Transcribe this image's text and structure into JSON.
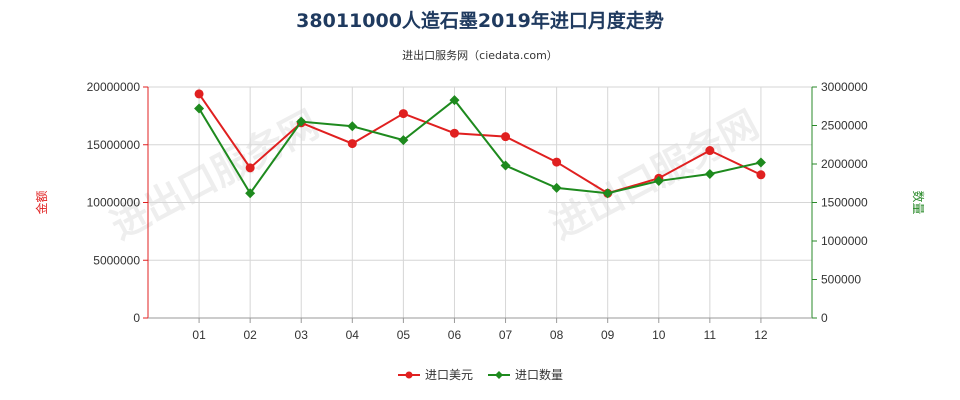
{
  "title": "38011000人造石墨2019年进口月度走势",
  "subtitle": "进出口服务网（ciedata.com）",
  "watermark": "进出口服务网",
  "chart_data": {
    "type": "line",
    "categories": [
      "01",
      "02",
      "03",
      "04",
      "05",
      "06",
      "07",
      "08",
      "09",
      "10",
      "11",
      "12"
    ],
    "ylabel_left": "金额",
    "ylabel_right": "数量",
    "ylim_left": [
      0,
      20000000
    ],
    "yticks_left": [
      "0",
      "5000000",
      "10000000",
      "15000000",
      "20000000"
    ],
    "ylim_right": [
      0,
      3000000
    ],
    "yticks_right": [
      "0",
      "500000",
      "1000000",
      "1500000",
      "2000000",
      "2500000",
      "3000000"
    ],
    "grid": true,
    "legend_position": "bottom",
    "series": [
      {
        "name": "进口美元",
        "axis": "left",
        "color": "#e02020",
        "marker": "circle",
        "values": [
          19400000,
          13000000,
          16900000,
          15100000,
          17700000,
          16000000,
          15700000,
          13500000,
          10800000,
          12100000,
          14500000,
          12400000
        ]
      },
      {
        "name": "进口数量",
        "axis": "right",
        "color": "#1e8a1e",
        "marker": "diamond",
        "values": [
          2720000,
          1620000,
          2550000,
          2490000,
          2310000,
          2830000,
          1980000,
          1690000,
          1620000,
          1780000,
          1870000,
          2020000
        ]
      }
    ]
  }
}
